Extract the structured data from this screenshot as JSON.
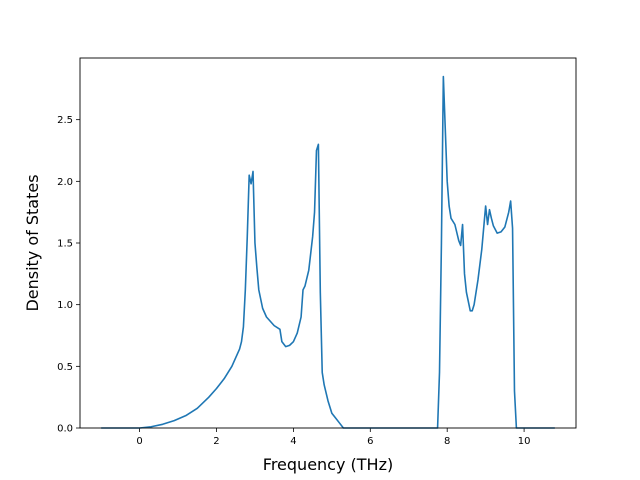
{
  "chart_data": {
    "type": "line",
    "title": "",
    "xlabel": "Frequency (THz)",
    "ylabel": "Density of States",
    "xlim": [
      -1.55,
      11.35
    ],
    "ylim": [
      0.0,
      3.0
    ],
    "xticks": [
      0,
      2,
      4,
      6,
      8,
      10
    ],
    "xtick_labels": [
      "0",
      "2",
      "4",
      "6",
      "8",
      "10"
    ],
    "yticks": [
      0.0,
      0.5,
      1.0,
      1.5,
      2.0,
      2.5
    ],
    "ytick_labels": [
      "0.0",
      "0.5",
      "1.0",
      "1.5",
      "2.0",
      "2.5"
    ],
    "grid": false,
    "legend": "none",
    "line_color": "#1f77b4",
    "series": [
      {
        "x": [
          -1.0,
          0.0,
          0.3,
          0.6,
          0.9,
          1.2,
          1.5,
          1.8,
          2.0,
          2.2,
          2.4,
          2.5,
          2.6,
          2.65,
          2.7,
          2.75,
          2.8,
          2.85,
          2.9,
          2.95,
          3.0,
          3.05,
          3.1,
          3.2,
          3.3,
          3.5,
          3.65,
          3.7,
          3.8,
          3.9,
          4.0,
          4.1,
          4.2,
          4.25,
          4.3,
          4.4,
          4.5,
          4.55,
          4.6,
          4.65,
          4.7,
          4.75,
          4.8,
          4.9,
          5.0,
          5.1,
          5.2,
          5.3,
          7.75,
          7.8,
          7.85,
          7.9,
          8.0,
          8.05,
          8.1,
          8.2,
          8.3,
          8.35,
          8.4,
          8.45,
          8.5,
          8.6,
          8.65,
          8.7,
          8.8,
          8.9,
          9.0,
          9.05,
          9.1,
          9.15,
          9.2,
          9.3,
          9.4,
          9.5,
          9.6,
          9.65,
          9.7,
          9.75,
          9.8,
          10.8
        ],
        "y": [
          0.0,
          0.0,
          0.01,
          0.03,
          0.06,
          0.1,
          0.16,
          0.25,
          0.32,
          0.4,
          0.5,
          0.57,
          0.64,
          0.7,
          0.82,
          1.12,
          1.55,
          2.05,
          1.98,
          2.08,
          1.5,
          1.3,
          1.12,
          0.97,
          0.9,
          0.83,
          0.8,
          0.7,
          0.66,
          0.67,
          0.7,
          0.77,
          0.9,
          1.12,
          1.15,
          1.28,
          1.55,
          1.75,
          2.25,
          2.3,
          1.1,
          0.45,
          0.35,
          0.22,
          0.12,
          0.08,
          0.04,
          0.0,
          0.0,
          0.45,
          1.5,
          2.85,
          2.0,
          1.8,
          1.7,
          1.65,
          1.52,
          1.48,
          1.65,
          1.25,
          1.1,
          0.95,
          0.95,
          1.0,
          1.2,
          1.45,
          1.8,
          1.65,
          1.77,
          1.7,
          1.64,
          1.58,
          1.59,
          1.63,
          1.75,
          1.84,
          1.62,
          0.3,
          0.0,
          0.0
        ]
      }
    ]
  }
}
